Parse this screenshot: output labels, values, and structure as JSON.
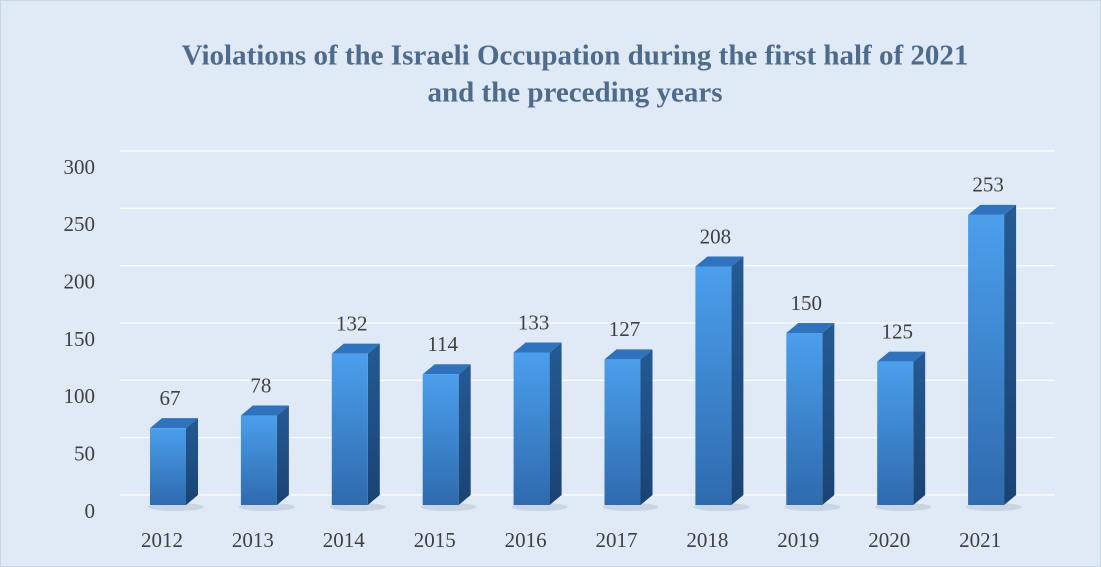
{
  "chart_data": {
    "type": "bar",
    "title_lines": [
      "Violations of the Israeli Occupation during the first half of 2021",
      "and the preceding years"
    ],
    "categories": [
      "2012",
      "2013",
      "2014",
      "2015",
      "2016",
      "2017",
      "2018",
      "2019",
      "2020",
      "2021"
    ],
    "values": [
      67,
      78,
      132,
      114,
      133,
      127,
      208,
      150,
      125,
      253
    ],
    "color": "#3a86d6",
    "ylim": [
      0,
      300
    ],
    "yticks": [
      0,
      50,
      100,
      150,
      200,
      250,
      300
    ],
    "grid": true
  }
}
